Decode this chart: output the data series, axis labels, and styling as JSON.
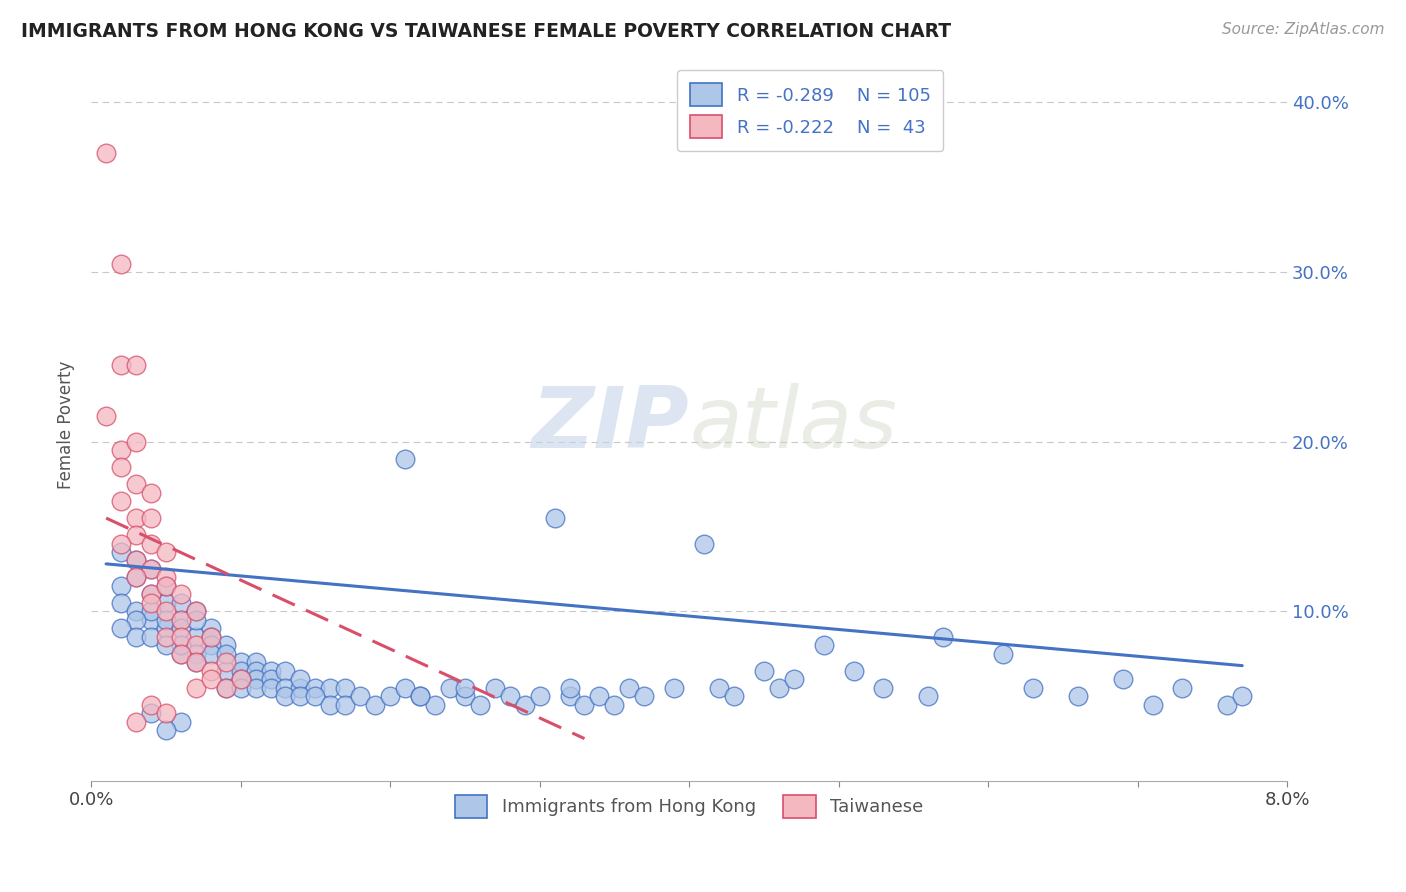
{
  "title": "IMMIGRANTS FROM HONG KONG VS TAIWANESE FEMALE POVERTY CORRELATION CHART",
  "source": "Source: ZipAtlas.com",
  "ylabel": "Female Poverty",
  "xlim": [
    0.0,
    0.08
  ],
  "ylim": [
    0.0,
    0.42
  ],
  "ytick_vals": [
    0.1,
    0.2,
    0.3,
    0.4
  ],
  "ytick_labels": [
    "10.0%",
    "20.0%",
    "30.0%",
    "40.0%"
  ],
  "grid_color": "#c8c8c8",
  "background_color": "#ffffff",
  "watermark_zip": "ZIP",
  "watermark_atlas": "atlas",
  "hk_color": "#aec6e8",
  "tw_color": "#f4b8c1",
  "hk_line_color": "#4472c4",
  "tw_line_color": "#d94f6a",
  "hk_scatter": [
    [
      0.002,
      0.135
    ],
    [
      0.003,
      0.13
    ],
    [
      0.002,
      0.115
    ],
    [
      0.003,
      0.12
    ],
    [
      0.004,
      0.125
    ],
    [
      0.002,
      0.105
    ],
    [
      0.003,
      0.1
    ],
    [
      0.004,
      0.095
    ],
    [
      0.005,
      0.105
    ],
    [
      0.004,
      0.1
    ],
    [
      0.003,
      0.095
    ],
    [
      0.002,
      0.09
    ],
    [
      0.003,
      0.085
    ],
    [
      0.004,
      0.085
    ],
    [
      0.005,
      0.09
    ],
    [
      0.006,
      0.095
    ],
    [
      0.004,
      0.11
    ],
    [
      0.005,
      0.115
    ],
    [
      0.006,
      0.105
    ],
    [
      0.007,
      0.1
    ],
    [
      0.005,
      0.095
    ],
    [
      0.006,
      0.09
    ],
    [
      0.007,
      0.085
    ],
    [
      0.008,
      0.09
    ],
    [
      0.007,
      0.095
    ],
    [
      0.008,
      0.085
    ],
    [
      0.009,
      0.08
    ],
    [
      0.008,
      0.08
    ],
    [
      0.007,
      0.075
    ],
    [
      0.006,
      0.075
    ],
    [
      0.006,
      0.08
    ],
    [
      0.005,
      0.08
    ],
    [
      0.007,
      0.07
    ],
    [
      0.008,
      0.075
    ],
    [
      0.009,
      0.065
    ],
    [
      0.01,
      0.07
    ],
    [
      0.009,
      0.075
    ],
    [
      0.01,
      0.065
    ],
    [
      0.011,
      0.07
    ],
    [
      0.011,
      0.065
    ],
    [
      0.012,
      0.065
    ],
    [
      0.011,
      0.06
    ],
    [
      0.01,
      0.06
    ],
    [
      0.009,
      0.055
    ],
    [
      0.01,
      0.055
    ],
    [
      0.011,
      0.055
    ],
    [
      0.012,
      0.06
    ],
    [
      0.013,
      0.065
    ],
    [
      0.012,
      0.055
    ],
    [
      0.013,
      0.055
    ],
    [
      0.014,
      0.055
    ],
    [
      0.013,
      0.05
    ],
    [
      0.014,
      0.06
    ],
    [
      0.015,
      0.055
    ],
    [
      0.014,
      0.05
    ],
    [
      0.016,
      0.055
    ],
    [
      0.015,
      0.05
    ],
    [
      0.017,
      0.055
    ],
    [
      0.016,
      0.045
    ],
    [
      0.017,
      0.045
    ],
    [
      0.018,
      0.05
    ],
    [
      0.019,
      0.045
    ],
    [
      0.02,
      0.05
    ],
    [
      0.021,
      0.055
    ],
    [
      0.021,
      0.19
    ],
    [
      0.022,
      0.05
    ],
    [
      0.023,
      0.045
    ],
    [
      0.022,
      0.05
    ],
    [
      0.024,
      0.055
    ],
    [
      0.025,
      0.05
    ],
    [
      0.026,
      0.045
    ],
    [
      0.025,
      0.055
    ],
    [
      0.027,
      0.055
    ],
    [
      0.028,
      0.05
    ],
    [
      0.029,
      0.045
    ],
    [
      0.03,
      0.05
    ],
    [
      0.031,
      0.155
    ],
    [
      0.032,
      0.05
    ],
    [
      0.033,
      0.045
    ],
    [
      0.032,
      0.055
    ],
    [
      0.034,
      0.05
    ],
    [
      0.035,
      0.045
    ],
    [
      0.036,
      0.055
    ],
    [
      0.037,
      0.05
    ],
    [
      0.039,
      0.055
    ],
    [
      0.041,
      0.14
    ],
    [
      0.042,
      0.055
    ],
    [
      0.043,
      0.05
    ],
    [
      0.045,
      0.065
    ],
    [
      0.046,
      0.055
    ],
    [
      0.047,
      0.06
    ],
    [
      0.049,
      0.08
    ],
    [
      0.051,
      0.065
    ],
    [
      0.053,
      0.055
    ],
    [
      0.056,
      0.05
    ],
    [
      0.057,
      0.085
    ],
    [
      0.061,
      0.075
    ],
    [
      0.063,
      0.055
    ],
    [
      0.066,
      0.05
    ],
    [
      0.071,
      0.045
    ],
    [
      0.069,
      0.06
    ],
    [
      0.073,
      0.055
    ],
    [
      0.076,
      0.045
    ],
    [
      0.077,
      0.05
    ],
    [
      0.004,
      0.04
    ],
    [
      0.006,
      0.035
    ],
    [
      0.005,
      0.03
    ]
  ],
  "tw_scatter": [
    [
      0.001,
      0.37
    ],
    [
      0.002,
      0.305
    ],
    [
      0.002,
      0.245
    ],
    [
      0.003,
      0.245
    ],
    [
      0.001,
      0.215
    ],
    [
      0.002,
      0.195
    ],
    [
      0.003,
      0.2
    ],
    [
      0.002,
      0.185
    ],
    [
      0.003,
      0.175
    ],
    [
      0.004,
      0.17
    ],
    [
      0.002,
      0.165
    ],
    [
      0.003,
      0.155
    ],
    [
      0.004,
      0.155
    ],
    [
      0.003,
      0.145
    ],
    [
      0.002,
      0.14
    ],
    [
      0.004,
      0.14
    ],
    [
      0.003,
      0.13
    ],
    [
      0.005,
      0.135
    ],
    [
      0.004,
      0.125
    ],
    [
      0.005,
      0.12
    ],
    [
      0.003,
      0.12
    ],
    [
      0.004,
      0.11
    ],
    [
      0.005,
      0.115
    ],
    [
      0.006,
      0.11
    ],
    [
      0.004,
      0.105
    ],
    [
      0.005,
      0.1
    ],
    [
      0.006,
      0.095
    ],
    [
      0.007,
      0.1
    ],
    [
      0.005,
      0.085
    ],
    [
      0.006,
      0.085
    ],
    [
      0.007,
      0.08
    ],
    [
      0.008,
      0.085
    ],
    [
      0.006,
      0.075
    ],
    [
      0.007,
      0.07
    ],
    [
      0.008,
      0.065
    ],
    [
      0.009,
      0.07
    ],
    [
      0.007,
      0.055
    ],
    [
      0.008,
      0.06
    ],
    [
      0.009,
      0.055
    ],
    [
      0.01,
      0.06
    ],
    [
      0.004,
      0.045
    ],
    [
      0.005,
      0.04
    ],
    [
      0.003,
      0.035
    ]
  ],
  "hk_line": [
    [
      0.001,
      0.128
    ],
    [
      0.077,
      0.068
    ]
  ],
  "tw_line": [
    [
      0.001,
      0.155
    ],
    [
      0.033,
      0.025
    ]
  ]
}
